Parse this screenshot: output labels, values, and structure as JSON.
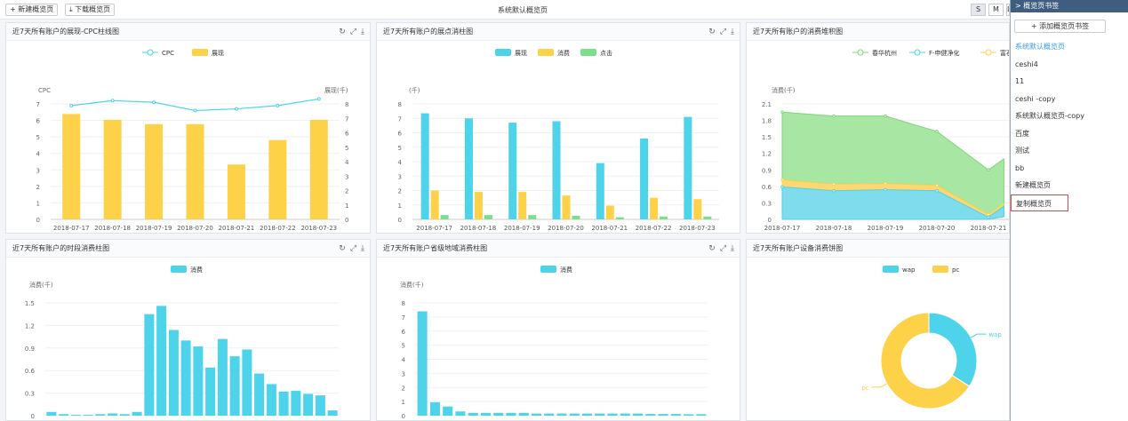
{
  "toolbar": {
    "new_label": "+ 新建概览页",
    "download_label": "下载概览页",
    "page_title": "系统默认概览页",
    "sizes": [
      "S",
      "M",
      "L"
    ],
    "active_size": "S"
  },
  "panels": [
    {
      "title": "近7天所有账户的展现-CPC柱线图"
    },
    {
      "title": "近7天所有账户的展点消柱图"
    },
    {
      "title": "近7天所有账户的消费堆积图"
    },
    {
      "title": "近7天所有账户的时段消费柱图"
    },
    {
      "title": "近7天所有账户省级地域消费柱图"
    },
    {
      "title": "近7天所有账户设备消费饼图"
    }
  ],
  "panel_tools": {
    "refresh": "↻",
    "expand": "⤢",
    "download": "⤓"
  },
  "sidebar": {
    "header": "> 概览页书签",
    "add_label": "+ 添加概览页书签",
    "items": [
      "系统默认概览页",
      "ceshi4",
      "11",
      "ceshi -copy",
      "系统默认概览页-copy",
      "百度",
      "测试",
      "bb",
      "新建概览页",
      "复制概览页"
    ],
    "active_index": 0,
    "selected_index": 9
  },
  "chart_data": [
    {
      "type": "bar",
      "categories": [
        "2018-07-17",
        "2018-07-18",
        "2018-07-19",
        "2018-07-20",
        "2018-07-21",
        "2018-07-22",
        "2018-07-23"
      ],
      "series": [
        {
          "name": "CPC",
          "type": "line",
          "axis": "left",
          "values": [
            6.9,
            7.2,
            7.1,
            6.6,
            6.7,
            6.9,
            7.3
          ],
          "color": "#4dd3ea"
        },
        {
          "name": "展现",
          "type": "bar",
          "axis": "right",
          "values": [
            7.3,
            6.9,
            6.6,
            6.6,
            3.8,
            5.5,
            6.9
          ],
          "color": "#fdd148"
        }
      ],
      "ylabel_left": "CPC",
      "ylabel_right": "展现(千)",
      "ylim_left": [
        0,
        7
      ],
      "ylim_right": [
        0,
        8
      ],
      "yticks_left": [
        0,
        1,
        2,
        3,
        4,
        5,
        6,
        7
      ],
      "yticks_right": [
        0,
        1,
        2,
        3,
        4,
        5,
        6,
        7,
        8
      ]
    },
    {
      "type": "bar",
      "categories": [
        "2018-07-17",
        "2018-07-18",
        "2018-07-19",
        "2018-07-20",
        "2018-07-21",
        "2018-07-22",
        "2018-07-23"
      ],
      "series": [
        {
          "name": "展现",
          "values": [
            7.35,
            7.0,
            6.7,
            6.8,
            3.9,
            5.6,
            7.1
          ],
          "color": "#4dd3ea"
        },
        {
          "name": "消费",
          "values": [
            2.0,
            1.9,
            1.9,
            1.65,
            0.95,
            1.5,
            1.4
          ],
          "color": "#fdd148"
        },
        {
          "name": "点击",
          "values": [
            0.3,
            0.3,
            0.3,
            0.25,
            0.15,
            0.2,
            0.2
          ],
          "color": "#7be08b"
        }
      ],
      "ylabel": "(千)",
      "ylim": [
        0,
        8
      ],
      "yticks": [
        0,
        1,
        2,
        3,
        4,
        5,
        6,
        7,
        8
      ]
    },
    {
      "type": "area",
      "categories": [
        "2018-07-17",
        "2018-07-18",
        "2018-07-19",
        "2018-07-20",
        "2018-07-21"
      ],
      "series": [
        {
          "name": "春华杭州",
          "values": [
            1.23,
            1.24,
            1.23,
            0.98,
            0.81
          ],
          "color": "#a8e6a3",
          "stroke": "#7fd67a"
        },
        {
          "name": "F-申健净化",
          "values": [
            0.59,
            0.52,
            0.54,
            0.52,
            0.04
          ],
          "color": "#7fdced",
          "stroke": "#4dd3ea"
        },
        {
          "name": "富石东方-产科",
          "values": [
            0.13,
            0.12,
            0.11,
            0.1,
            0.05
          ],
          "color": "#fdd774",
          "stroke": "#fdd148"
        }
      ],
      "ylabel": "消费(千)",
      "ylim": [
        0,
        2.1
      ],
      "yticks": [
        "0",
        "0.3",
        "0.6",
        "0.9",
        "1.2",
        "1.5",
        "1.8",
        "2.1"
      ]
    },
    {
      "type": "bar",
      "series": [
        {
          "name": "消费",
          "values": [
            0.05,
            0.02,
            0.01,
            0.01,
            0.02,
            0.03,
            0.02,
            0.05,
            1.35,
            1.46,
            1.14,
            1.0,
            0.92,
            0.64,
            1.02,
            0.79,
            0.88,
            0.56,
            0.42,
            0.32,
            0.33,
            0.29,
            0.27,
            0.07
          ],
          "color": "#4dd3ea"
        }
      ],
      "ylabel": "消费(千)",
      "ylim": [
        0,
        1.5
      ],
      "yticks": [
        "0",
        "0.3",
        "0.6",
        "0.9",
        "1.2",
        "1.5"
      ]
    },
    {
      "type": "bar",
      "series": [
        {
          "name": "消费",
          "values": [
            7.4,
            0.95,
            0.65,
            0.3,
            0.2,
            0.2,
            0.2,
            0.2,
            0.2,
            0.15,
            0.15,
            0.15,
            0.15,
            0.15,
            0.15,
            0.15,
            0.15,
            0.15,
            0.12,
            0.12,
            0.12,
            0.1,
            0.1
          ],
          "color": "#4dd3ea"
        }
      ],
      "ylabel": "消费(千)",
      "ylim": [
        0,
        8
      ],
      "yticks": [
        0,
        1,
        2,
        3,
        4,
        5,
        6,
        7,
        8
      ]
    },
    {
      "type": "pie",
      "labels": [
        "wap",
        "pc"
      ],
      "values": [
        34,
        66
      ],
      "colors": [
        "#4dd3ea",
        "#fdd148"
      ]
    }
  ]
}
